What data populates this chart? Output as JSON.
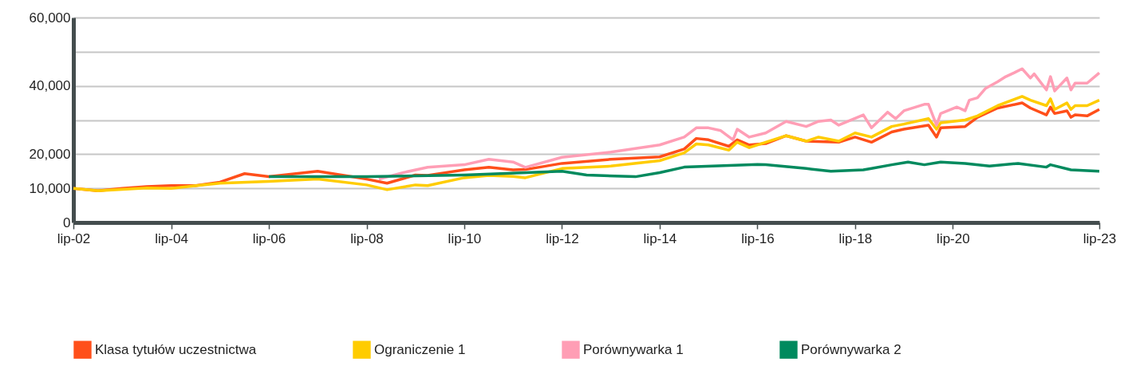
{
  "chart_data": {
    "type": "line",
    "xlim": [
      "2002-07",
      "2023-07"
    ],
    "xticks": [
      {
        "value": "2002-07",
        "label": "lip-02"
      },
      {
        "value": "2004-07",
        "label": "lip-04"
      },
      {
        "value": "2006-07",
        "label": "lip-06"
      },
      {
        "value": "2008-07",
        "label": "lip-08"
      },
      {
        "value": "2010-07",
        "label": "lip-10"
      },
      {
        "value": "2012-07",
        "label": "lip-12"
      },
      {
        "value": "2014-07",
        "label": "lip-14"
      },
      {
        "value": "2016-07",
        "label": "lip-16"
      },
      {
        "value": "2018-07",
        "label": "lip-18"
      },
      {
        "value": "2020-07",
        "label": "lip-20"
      },
      {
        "value": "2023-07",
        "label": "lip-23"
      }
    ],
    "ylim": [
      0,
      60000
    ],
    "yticks": [
      {
        "value": 0,
        "label": "0"
      },
      {
        "value": 10000,
        "label": "10,000"
      },
      {
        "value": 20000,
        "label": "20,000"
      },
      {
        "value": 30000,
        "label": null
      },
      {
        "value": 40000,
        "label": "40,000"
      },
      {
        "value": 50000,
        "label": null
      },
      {
        "value": 60000,
        "label": "60,000"
      }
    ],
    "grid": "y",
    "legend": "bottom",
    "line_style": "solid",
    "marker": "none",
    "series": [
      {
        "name": "Klasa tytułów uczestnictwa",
        "color": "#ff4f1a",
        "x": [
          "2002-07",
          "2003-01",
          "2003-07",
          "2004-01",
          "2004-07",
          "2005-01",
          "2005-07",
          "2006-01",
          "2006-07",
          "2007-07",
          "2008-07",
          "2008-12",
          "2009-07",
          "2009-10",
          "2010-07",
          "2011-01",
          "2011-07",
          "2011-10",
          "2012-07",
          "2013-07",
          "2014-07",
          "2015-01",
          "2015-04",
          "2015-07",
          "2015-12",
          "2016-02",
          "2016-05",
          "2016-09",
          "2017-02",
          "2017-07",
          "2018-03",
          "2018-07",
          "2018-11",
          "2019-04",
          "2019-07",
          "2020-01",
          "2020-03",
          "2020-04",
          "2020-10",
          "2021-01",
          "2021-06",
          "2021-12",
          "2022-02",
          "2022-06",
          "2022-07",
          "2022-08",
          "2022-11",
          "2022-12",
          "2023-01",
          "2023-04",
          "2023-07"
        ],
        "values": [
          10000,
          9300,
          10000,
          10500,
          10800,
          10800,
          11800,
          14300,
          13400,
          15000,
          12700,
          11500,
          13900,
          13800,
          15400,
          16150,
          15400,
          15500,
          17300,
          18500,
          19200,
          21500,
          24600,
          24200,
          22300,
          24200,
          22700,
          23100,
          25400,
          23800,
          23500,
          25000,
          23500,
          26500,
          27300,
          28500,
          25000,
          27700,
          28100,
          30800,
          33500,
          35000,
          33500,
          31500,
          33800,
          31900,
          32700,
          30800,
          31500,
          31200,
          33100
        ]
      },
      {
        "name": "Ograniczenie 1",
        "color": "#ffcc00",
        "x": [
          "2002-07",
          "2003-01",
          "2003-07",
          "2004-01",
          "2004-07",
          "2005-07",
          "2006-07",
          "2007-07",
          "2008-07",
          "2008-12",
          "2009-07",
          "2009-10",
          "2010-07",
          "2011-01",
          "2011-07",
          "2011-10",
          "2012-07",
          "2013-07",
          "2014-07",
          "2015-01",
          "2015-04",
          "2015-07",
          "2015-12",
          "2016-02",
          "2016-05",
          "2016-09",
          "2017-02",
          "2017-07",
          "2017-10",
          "2018-03",
          "2018-07",
          "2018-11",
          "2019-04",
          "2019-07",
          "2020-01",
          "2020-03",
          "2020-04",
          "2020-10",
          "2021-01",
          "2021-06",
          "2021-12",
          "2022-02",
          "2022-06",
          "2022-07",
          "2022-08",
          "2022-11",
          "2022-12",
          "2023-01",
          "2023-04",
          "2023-07"
        ],
        "values": [
          10000,
          9300,
          9700,
          10100,
          10000,
          11500,
          12000,
          12700,
          11000,
          9600,
          11000,
          10800,
          13100,
          13800,
          13500,
          13100,
          15800,
          16500,
          18100,
          20400,
          23000,
          22700,
          21200,
          23500,
          21900,
          23500,
          25400,
          23800,
          25000,
          23800,
          26200,
          25000,
          28100,
          28800,
          30400,
          27300,
          29200,
          30000,
          31200,
          34200,
          36900,
          35800,
          34200,
          36200,
          33100,
          35000,
          33100,
          34200,
          34200,
          35800
        ]
      },
      {
        "name": "Porównywarka 1",
        "color": "#ff9eb5",
        "x": [
          "2008-10",
          "2009-04",
          "2009-10",
          "2010-07",
          "2011-01",
          "2011-07",
          "2011-10",
          "2012-07",
          "2013-07",
          "2014-07",
          "2015-01",
          "2015-04",
          "2015-07",
          "2015-10",
          "2016-01",
          "2016-02",
          "2016-05",
          "2016-09",
          "2017-02",
          "2017-07",
          "2017-10",
          "2018-01",
          "2018-03",
          "2018-09",
          "2018-11",
          "2019-03",
          "2019-05",
          "2019-07",
          "2019-12",
          "2020-01",
          "2020-03",
          "2020-04",
          "2020-08",
          "2020-10",
          "2020-11",
          "2021-01",
          "2021-03",
          "2021-06",
          "2021-08",
          "2021-10",
          "2021-12",
          "2022-02",
          "2022-03",
          "2022-06",
          "2022-07",
          "2022-08",
          "2022-11",
          "2022-12",
          "2023-01",
          "2023-04",
          "2023-07"
        ],
        "values": [
          12700,
          14600,
          16150,
          16900,
          18500,
          17700,
          16150,
          19100,
          20600,
          22700,
          25000,
          27700,
          27700,
          26900,
          24200,
          27300,
          25000,
          26200,
          29600,
          28100,
          29600,
          30000,
          28500,
          31500,
          27700,
          32300,
          30400,
          32700,
          34600,
          34600,
          28500,
          31900,
          33800,
          32700,
          35800,
          36500,
          39200,
          41200,
          42700,
          43800,
          45000,
          42300,
          43500,
          38800,
          42700,
          38500,
          42300,
          38800,
          40800,
          40800,
          43800
        ]
      },
      {
        "name": "Porównywarka 2",
        "color": "#008a5e",
        "x": [
          "2006-07",
          "2008-07",
          "2010-07",
          "2012-07",
          "2013-01",
          "2014-01",
          "2014-07",
          "2015-01",
          "2016-07",
          "2016-09",
          "2017-07",
          "2018-01",
          "2018-09",
          "2018-11",
          "2019-04",
          "2019-08",
          "2019-12",
          "2020-04",
          "2020-10",
          "2021-04",
          "2021-11",
          "2022-06",
          "2022-07",
          "2022-12",
          "2023-07"
        ],
        "values": [
          13400,
          13400,
          13900,
          15000,
          13900,
          13400,
          14600,
          16200,
          17000,
          16900,
          15800,
          15000,
          15400,
          15800,
          16900,
          17700,
          16900,
          17700,
          17300,
          16500,
          17300,
          16200,
          16900,
          15400,
          15000
        ]
      }
    ]
  }
}
